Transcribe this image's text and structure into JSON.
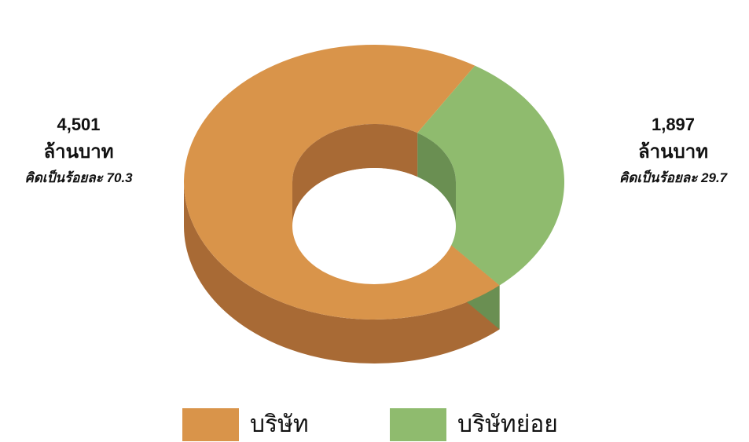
{
  "colors": {
    "company": "#D9944A",
    "company_side": "#A86A35",
    "subsidiary": "#8FBB6E",
    "subsidiary_side": "#6A8F52"
  },
  "chart_data": {
    "type": "pie",
    "subtype": "3d-doughnut",
    "categories": [
      "บริษัท",
      "บริษัทย่อย"
    ],
    "values": [
      4501,
      1897
    ],
    "percentages": [
      70.3,
      29.7
    ],
    "unit": "ล้านบาท",
    "legend_position": "bottom"
  },
  "labels": {
    "company": {
      "value": "4,501",
      "unit": "ล้านบาท",
      "percent_text": "คิดเป็นร้อยละ 70.3"
    },
    "subsidiary": {
      "value": "1,897",
      "unit": "ล้านบาท",
      "percent_text": "คิดเป็นร้อยละ 29.7"
    }
  },
  "legend": [
    {
      "label": "บริษัท"
    },
    {
      "label": "บริษัทย่อย"
    }
  ]
}
